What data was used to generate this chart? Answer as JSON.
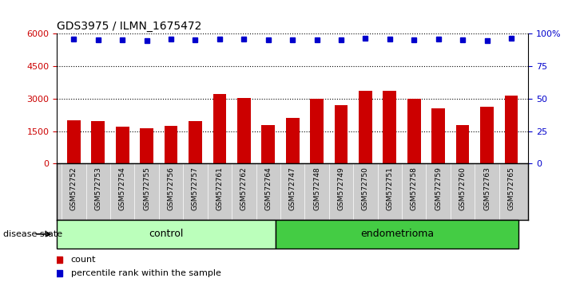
{
  "title": "GDS3975 / ILMN_1675472",
  "samples": [
    "GSM572752",
    "GSM572753",
    "GSM572754",
    "GSM572755",
    "GSM572756",
    "GSM572757",
    "GSM572761",
    "GSM572762",
    "GSM572764",
    "GSM572747",
    "GSM572748",
    "GSM572749",
    "GSM572750",
    "GSM572751",
    "GSM572758",
    "GSM572759",
    "GSM572760",
    "GSM572763",
    "GSM572765"
  ],
  "counts": [
    2000,
    1950,
    1700,
    1650,
    1750,
    1980,
    3200,
    3050,
    1780,
    2100,
    2980,
    2700,
    3350,
    3350,
    2980,
    2550,
    1780,
    2620,
    3150
  ],
  "percentile_left": [
    5760,
    5720,
    5740,
    5700,
    5760,
    5730,
    5760,
    5770,
    5710,
    5730,
    5720,
    5740,
    5780,
    5760,
    5740,
    5750,
    5720,
    5700,
    5780
  ],
  "control_count": 9,
  "endometrioma_count": 10,
  "ylim_left": [
    0,
    6000
  ],
  "ylim_right": [
    0,
    100
  ],
  "yticks_left": [
    0,
    1500,
    3000,
    4500,
    6000
  ],
  "yticks_right": [
    0,
    25,
    50,
    75,
    100
  ],
  "bar_color": "#cc0000",
  "dot_color": "#0000cc",
  "control_bg": "#bbffbb",
  "endometrioma_bg": "#44cc44",
  "xticklabel_bg": "#cccccc",
  "legend_count_color": "#cc0000",
  "legend_pct_color": "#0000cc",
  "disease_state_label": "disease state",
  "control_label": "control",
  "endometrioma_label": "endometrioma",
  "legend_count": "count",
  "legend_pct": "percentile rank within the sample"
}
